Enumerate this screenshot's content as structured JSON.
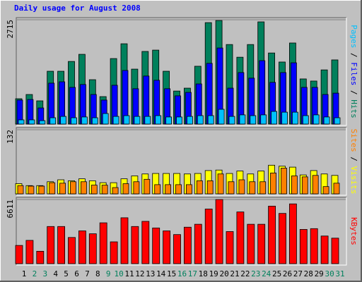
{
  "chart_data": {
    "type": "bar",
    "title": "Daily usage for August 2008",
    "categories": [
      "1",
      "2",
      "3",
      "4",
      "5",
      "6",
      "7",
      "8",
      "9",
      "10",
      "11",
      "12",
      "13",
      "14",
      "15",
      "16",
      "17",
      "18",
      "19",
      "20",
      "21",
      "22",
      "23",
      "24",
      "25",
      "26",
      "27",
      "28",
      "29",
      "30",
      "31"
    ],
    "category_colors": [
      "#000000",
      "#00805c",
      "#00805c",
      "#000000",
      "#000000",
      "#000000",
      "#000000",
      "#000000",
      "#00805c",
      "#00805c",
      "#000000",
      "#000000",
      "#000000",
      "#000000",
      "#000000",
      "#00805c",
      "#00805c",
      "#000000",
      "#000000",
      "#000000",
      "#000000",
      "#000000",
      "#00805c",
      "#00805c",
      "#000000",
      "#000000",
      "#000000",
      "#000000",
      "#000000",
      "#00805c",
      "#00805c"
    ],
    "panels": [
      {
        "ylim": [
          0,
          2715
        ],
        "yticks": [
          2715
        ],
        "series": [
          {
            "name": "Hits",
            "color": "#00805c",
            "values": [
              660,
              770,
              605,
              1375,
              1375,
              1630,
              1815,
              1155,
              715,
              1705,
              2090,
              1430,
              1890,
              1925,
              1375,
              860,
              935,
              1505,
              2640,
              2695,
              2070,
              1740,
              2070,
              2660,
              1850,
              1615,
              2110,
              1175,
              1120,
              1410,
              1670
            ]
          },
          {
            "name": "Files",
            "color": "#0000ff",
            "values": [
              625,
              640,
              420,
              1065,
              1100,
              955,
              1030,
              770,
              625,
              1010,
              1395,
              920,
              1250,
              1140,
              920,
              735,
              825,
              1045,
              1580,
              1980,
              935,
              1340,
              1195,
              1650,
              1085,
              1340,
              1595,
              955,
              955,
              770,
              805
            ]
          },
          {
            "name": "Pages",
            "color": "#00c0ff",
            "values": [
              110,
              110,
              90,
              165,
              200,
              165,
              185,
              165,
              275,
              200,
              220,
              200,
              200,
              220,
              185,
              185,
              200,
              220,
              220,
              385,
              200,
              240,
              220,
              240,
              330,
              310,
              310,
              220,
              240,
              185,
              165
            ]
          }
        ]
      },
      {
        "ylim": [
          0,
          132
        ],
        "yticks": [
          132
        ],
        "series": [
          {
            "name": "Visits",
            "color": "#ffff00",
            "values": [
              21,
              17,
              17,
              25,
              29,
              27,
              31,
              27,
              23,
              23,
              31,
              37,
              41,
              42,
              42,
              42,
              41,
              42,
              48,
              49,
              42,
              47,
              41,
              47,
              59,
              57,
              55,
              39,
              48,
              41,
              38
            ]
          },
          {
            "name": "Sites",
            "color": "#ff8000",
            "values": [
              17,
              16,
              16,
              23,
              22,
              25,
              25,
              18,
              18,
              13,
              21,
              25,
              30,
              19,
              19,
              19,
              19,
              27,
              27,
              41,
              25,
              29,
              25,
              25,
              43,
              53,
              37,
              35,
              38,
              15,
              22
            ]
          }
        ]
      },
      {
        "ylim": [
          0,
          6611
        ],
        "yticks": [
          6611
        ],
        "series": [
          {
            "name": "KBytes",
            "color": "#ff0000",
            "values": [
              1880,
              2400,
              1280,
              3830,
              3830,
              2700,
              3380,
              3080,
              4210,
              2250,
              4730,
              3830,
              4360,
              3680,
              3380,
              3000,
              3760,
              4060,
              5630,
              6610,
              3310,
              5330,
              4060,
              4060,
              5930,
              5180,
              6160,
              3530,
              3610,
              2850,
              2630
            ]
          }
        ]
      }
    ]
  }
}
